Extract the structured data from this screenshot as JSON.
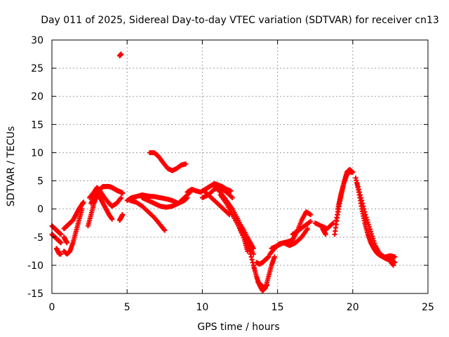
{
  "chart_data": {
    "type": "scatter",
    "title": "Day 011 of 2025, Sidereal Day-to-day VTEC variation (SDTVAR) for receiver cn13",
    "xlabel": "GPS time / hours",
    "ylabel": "SDTVAR / TECUs",
    "xlim": [
      0,
      25
    ],
    "ylim": [
      -15,
      30
    ],
    "xticks": [
      0,
      5,
      10,
      15,
      20,
      25
    ],
    "yticks": [
      -15,
      -10,
      -5,
      0,
      5,
      10,
      15,
      20,
      25,
      30
    ],
    "grid": true,
    "marker": "plus",
    "marker_color": "#ff0000",
    "series": [
      {
        "name": "s1",
        "x": [
          0.0,
          0.2,
          0.4,
          0.6
        ],
        "y": [
          -3.0,
          -3.5,
          -4.0,
          -4.5
        ]
      },
      {
        "name": "s2",
        "x": [
          0.0,
          0.2,
          0.4,
          0.6
        ],
        "y": [
          -4.5,
          -5.0,
          -5.5,
          -6.0
        ]
      },
      {
        "name": "s3",
        "x": [
          0.3,
          0.4,
          0.5,
          0.6
        ],
        "y": [
          -7.0,
          -7.5,
          -8.0,
          -8.0
        ]
      },
      {
        "name": "s4",
        "x": [
          0.8,
          1.0,
          1.2,
          1.4,
          1.6,
          1.8,
          2.0,
          2.1
        ],
        "y": [
          -3.5,
          -3.0,
          -2.5,
          -2.0,
          -1.0,
          0.0,
          0.8,
          1.2
        ]
      },
      {
        "name": "s5",
        "x": [
          0.8,
          0.9,
          1.0
        ],
        "y": [
          -5.0,
          -5.5,
          -6.0
        ]
      },
      {
        "name": "s6",
        "x": [
          0.8,
          1.0,
          1.2,
          1.4,
          1.6,
          1.8,
          2.0
        ],
        "y": [
          -7.5,
          -8.0,
          -7.5,
          -6.0,
          -4.0,
          -2.0,
          0.0
        ]
      },
      {
        "name": "s7",
        "x": [
          2.4,
          2.6,
          2.8,
          3.0,
          3.2,
          3.4,
          3.6,
          3.8,
          4.0,
          4.2,
          4.4,
          4.6,
          4.7
        ],
        "y": [
          -3.0,
          -1.0,
          1.0,
          2.5,
          3.5,
          4.0,
          4.0,
          4.0,
          3.8,
          3.5,
          3.2,
          3.0,
          2.8
        ]
      },
      {
        "name": "s8",
        "x": [
          2.5,
          2.8,
          3.0,
          3.2,
          3.5,
          3.8,
          4.0,
          4.3,
          4.6
        ],
        "y": [
          2.0,
          3.0,
          3.8,
          3.2,
          2.0,
          1.0,
          0.5,
          1.0,
          2.0
        ]
      },
      {
        "name": "s9",
        "x": [
          2.6,
          2.8,
          3.0,
          3.2,
          3.4,
          3.6,
          3.8,
          4.0
        ],
        "y": [
          1.0,
          2.0,
          2.5,
          2.0,
          1.0,
          0.0,
          -1.0,
          -1.8
        ]
      },
      {
        "name": "s10",
        "x": [
          4.5,
          4.6,
          4.7
        ],
        "y": [
          -2.0,
          -1.5,
          -1.0
        ]
      },
      {
        "name": "s11",
        "x": [
          4.5,
          4.6
        ],
        "y": [
          27.2,
          27.5
        ]
      },
      {
        "name": "s12",
        "x": [
          5.0,
          5.3,
          5.6,
          6.0,
          6.4,
          6.8,
          7.2,
          7.6,
          8.0,
          8.4,
          8.8,
          9.0
        ],
        "y": [
          1.5,
          2.0,
          2.2,
          2.5,
          2.3,
          2.2,
          2.0,
          1.8,
          1.5,
          1.0,
          1.5,
          2.0
        ]
      },
      {
        "name": "s13",
        "x": [
          5.2,
          5.6,
          6.0,
          6.4,
          6.8,
          7.2,
          7.5
        ],
        "y": [
          1.5,
          1.2,
          0.5,
          -0.5,
          -1.5,
          -2.8,
          -3.8
        ]
      },
      {
        "name": "s14",
        "x": [
          6.0,
          6.4,
          6.8,
          7.2,
          7.6,
          8.0,
          8.4,
          8.8,
          9.2
        ],
        "y": [
          2.0,
          1.5,
          1.0,
          0.5,
          0.3,
          0.5,
          1.0,
          2.0,
          3.0
        ]
      },
      {
        "name": "s15",
        "x": [
          6.5,
          6.8,
          7.1,
          7.4,
          7.7,
          8.0,
          8.3,
          8.6,
          8.9
        ],
        "y": [
          10.0,
          10.0,
          9.3,
          8.2,
          7.2,
          6.8,
          7.2,
          7.8,
          8.0
        ]
      },
      {
        "name": "s16",
        "x": [
          9.0,
          9.3,
          9.6,
          9.9,
          10.2,
          10.5,
          10.8,
          11.0,
          11.3,
          11.6,
          11.9
        ],
        "y": [
          3.0,
          3.5,
          3.2,
          3.0,
          3.5,
          4.0,
          4.5,
          4.3,
          4.0,
          3.5,
          3.2
        ]
      },
      {
        "name": "s17",
        "x": [
          10.0,
          10.4,
          10.8,
          11.2,
          11.6,
          12.0
        ],
        "y": [
          2.0,
          2.5,
          3.5,
          3.8,
          3.0,
          2.0
        ]
      },
      {
        "name": "s18",
        "x": [
          10.2,
          10.6,
          11.0,
          11.4,
          11.8
        ],
        "y": [
          3.0,
          2.0,
          1.0,
          0.0,
          -1.0
        ]
      },
      {
        "name": "s19",
        "x": [
          10.8,
          11.2,
          11.6,
          12.0,
          12.4,
          12.8,
          13.2,
          13.5
        ],
        "y": [
          4.0,
          3.0,
          1.5,
          0.0,
          -2.0,
          -4.5,
          -8.0,
          -11.0
        ]
      },
      {
        "name": "s20",
        "x": [
          11.2,
          11.6,
          12.0,
          12.4,
          12.8,
          13.0
        ],
        "y": [
          2.5,
          1.0,
          -1.0,
          -3.0,
          -5.5,
          -7.5
        ]
      },
      {
        "name": "s21",
        "x": [
          11.8,
          12.2,
          12.6,
          13.0,
          13.4
        ],
        "y": [
          0.0,
          -2.0,
          -4.0,
          -6.0,
          -8.0
        ]
      },
      {
        "name": "s22",
        "x": [
          12.3,
          12.7,
          13.1,
          13.4
        ],
        "y": [
          -2.0,
          -3.5,
          -5.5,
          -7.0
        ]
      },
      {
        "name": "s23",
        "x": [
          13.4,
          13.6,
          13.8,
          14.0,
          14.2,
          14.4,
          14.6,
          14.8
        ],
        "y": [
          -10.0,
          -12.0,
          -13.5,
          -14.5,
          -14.0,
          -12.0,
          -10.0,
          -8.5
        ]
      },
      {
        "name": "s24",
        "x": [
          13.6,
          13.8,
          14.0,
          14.2,
          14.4
        ],
        "y": [
          -9.5,
          -9.8,
          -9.5,
          -9.0,
          -8.5
        ]
      },
      {
        "name": "s25",
        "x": [
          13.7,
          13.9,
          14.1,
          14.3
        ],
        "y": [
          -13.0,
          -13.5,
          -14.0,
          -13.5
        ]
      },
      {
        "name": "s26",
        "x": [
          14.5,
          14.8,
          15.1,
          15.4,
          15.7,
          16.0,
          16.3,
          16.6,
          16.9,
          17.2
        ],
        "y": [
          -8.0,
          -7.0,
          -6.2,
          -6.0,
          -5.8,
          -5.5,
          -4.0,
          -2.0,
          -0.5,
          -1.0
        ]
      },
      {
        "name": "s27",
        "x": [
          14.6,
          15.0,
          15.4,
          15.8,
          16.2,
          16.6,
          17.0
        ],
        "y": [
          -7.0,
          -6.5,
          -6.0,
          -6.5,
          -6.0,
          -5.0,
          -3.5
        ]
      },
      {
        "name": "s28",
        "x": [
          16.0,
          16.4,
          16.8,
          17.2
        ],
        "y": [
          -4.5,
          -3.8,
          -3.0,
          -2.2
        ]
      },
      {
        "name": "s29",
        "x": [
          17.5,
          17.9,
          18.3,
          18.7
        ],
        "y": [
          -2.5,
          -3.0,
          -3.5,
          -2.5
        ]
      },
      {
        "name": "s30",
        "x": [
          18.0,
          18.1,
          18.2
        ],
        "y": [
          -3.5,
          -4.0,
          -4.5
        ]
      },
      {
        "name": "s31",
        "x": [
          18.8,
          19.0,
          19.2,
          19.4,
          19.6,
          19.8,
          20.0
        ],
        "y": [
          -4.5,
          -1.0,
          2.0,
          4.5,
          6.5,
          7.0,
          6.5
        ]
      },
      {
        "name": "s32",
        "x": [
          18.9,
          19.1,
          19.3,
          19.5,
          19.7,
          19.9
        ],
        "y": [
          -2.0,
          1.0,
          3.5,
          5.5,
          6.8,
          6.5
        ]
      },
      {
        "name": "s33",
        "x": [
          19.0,
          19.2,
          19.4,
          19.6,
          19.8
        ],
        "y": [
          0.0,
          2.5,
          4.5,
          6.0,
          6.8
        ]
      },
      {
        "name": "s34",
        "x": [
          20.2,
          20.4,
          20.6,
          20.8,
          21.0,
          21.2,
          21.4,
          21.6,
          21.8,
          22.0,
          22.2,
          22.4,
          22.6,
          22.8
        ],
        "y": [
          5.5,
          3.0,
          0.0,
          -2.5,
          -4.5,
          -6.0,
          -7.0,
          -7.8,
          -8.2,
          -8.5,
          -8.8,
          -9.0,
          -9.2,
          -9.5
        ]
      },
      {
        "name": "s35",
        "x": [
          20.3,
          20.6,
          20.9,
          21.2,
          21.5,
          21.8,
          22.1,
          22.4,
          22.7
        ],
        "y": [
          4.5,
          1.5,
          -1.5,
          -4.0,
          -6.5,
          -8.0,
          -8.5,
          -9.0,
          -10.0
        ]
      },
      {
        "name": "s36",
        "x": [
          22.2,
          22.5,
          22.8
        ],
        "y": [
          -8.5,
          -8.3,
          -8.5
        ]
      }
    ]
  }
}
